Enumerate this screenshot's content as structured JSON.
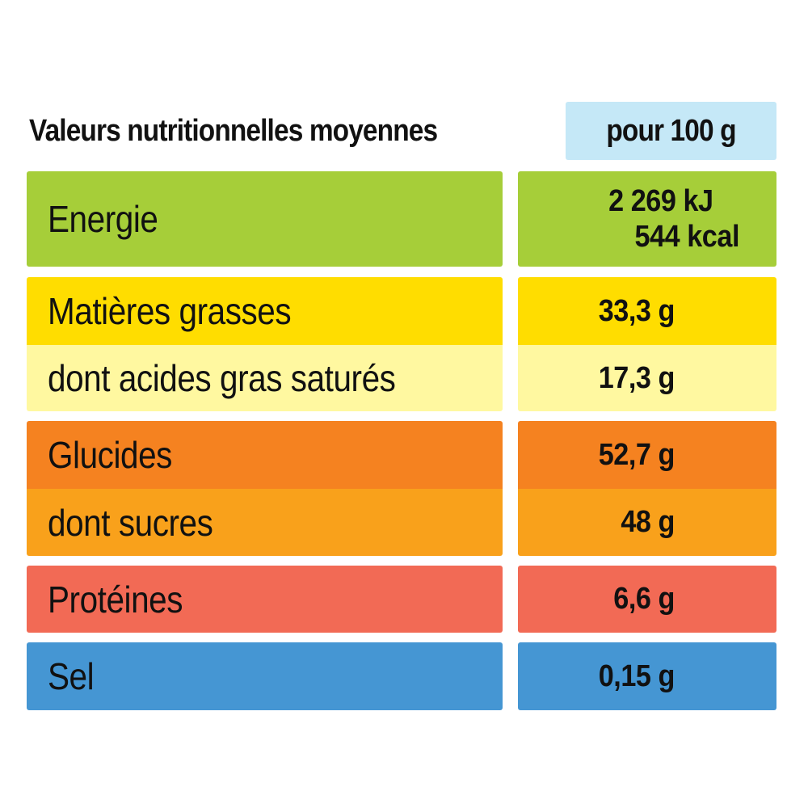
{
  "header": {
    "title": "Valeurs nutritionnelles moyennes",
    "unit": "pour 100 g"
  },
  "colors": {
    "header_unit_bg": "#c5e8f7",
    "energie": "#a6ce39",
    "matieres_grasses": "#ffdd00",
    "acides_gras_satures": "#fff8a0",
    "glucides": "#f58220",
    "sucres": "#f9a11b",
    "proteines": "#f26a55",
    "sel": "#4596d3"
  },
  "rows": {
    "energie": {
      "label": "Energie",
      "value_kj": "2 269  kJ",
      "value_kcal": "544 kcal"
    },
    "matieres_grasses": {
      "label": "Matières grasses",
      "value": "33,3 g"
    },
    "acides_gras_satures": {
      "label": "dont acides gras saturés",
      "value": "17,3 g"
    },
    "glucides": {
      "label": "Glucides",
      "value": "52,7 g"
    },
    "sucres": {
      "label": "dont sucres",
      "value": "48 g"
    },
    "proteines": {
      "label": "Protéines",
      "value": "6,6 g"
    },
    "sel": {
      "label": "Sel",
      "value": "0,15 g"
    }
  }
}
